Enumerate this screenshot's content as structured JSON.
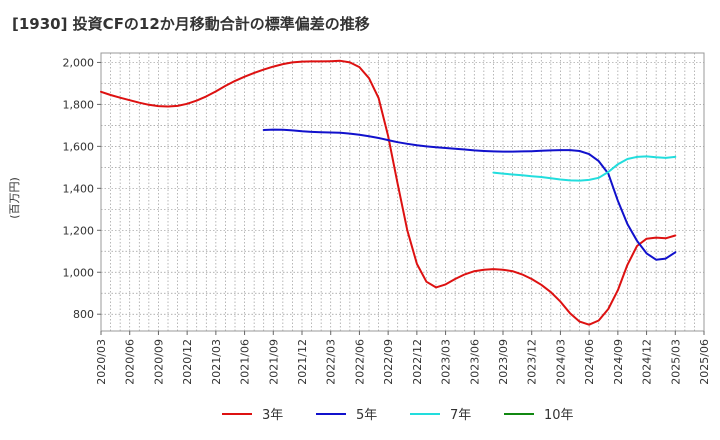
{
  "chart_data": {
    "type": "line",
    "title": "[1930]  投資CFの12か月移動合計の標準偏差の推移",
    "ylabel": "(百万円)",
    "ylim": [
      720,
      2045
    ],
    "yticks": [
      800,
      1000,
      1200,
      1400,
      1600,
      1800,
      2000
    ],
    "ytick_labels": [
      "800",
      "1,000",
      "1,200",
      "1,400",
      "1,600",
      "1,800",
      "2,000"
    ],
    "xlim": [
      "2020-03",
      "2025-06"
    ],
    "xticks": [
      "2020/03",
      "2020/06",
      "2020/09",
      "2020/12",
      "2021/03",
      "2021/06",
      "2021/09",
      "2021/12",
      "2022/03",
      "2022/06",
      "2022/09",
      "2022/12",
      "2023/03",
      "2023/06",
      "2023/09",
      "2023/12",
      "2024/03",
      "2024/06",
      "2024/09",
      "2024/12",
      "2025/03",
      "2025/06"
    ],
    "grid": true,
    "legend_position": "bottom",
    "series": [
      {
        "name": "3年",
        "color": "#dd1111",
        "x": [
          "2020-03",
          "2020-04",
          "2020-05",
          "2020-06",
          "2020-07",
          "2020-08",
          "2020-09",
          "2020-10",
          "2020-11",
          "2020-12",
          "2021-01",
          "2021-02",
          "2021-03",
          "2021-04",
          "2021-05",
          "2021-06",
          "2021-07",
          "2021-08",
          "2021-09",
          "2021-10",
          "2021-11",
          "2021-12",
          "2022-01",
          "2022-02",
          "2022-03",
          "2022-04",
          "2022-05",
          "2022-06",
          "2022-07",
          "2022-08",
          "2022-09",
          "2022-10",
          "2022-11",
          "2022-12",
          "2023-01",
          "2023-02",
          "2023-03",
          "2023-04",
          "2023-05",
          "2023-06",
          "2023-07",
          "2023-08",
          "2023-09",
          "2023-10",
          "2023-11",
          "2023-12",
          "2024-01",
          "2024-02",
          "2024-03",
          "2024-04",
          "2024-05",
          "2024-06",
          "2024-07",
          "2024-08",
          "2024-09",
          "2024-10",
          "2024-11",
          "2024-12",
          "2025-01",
          "2025-02",
          "2025-03"
        ],
        "values": [
          1860,
          1845,
          1832,
          1820,
          1808,
          1798,
          1792,
          1790,
          1793,
          1803,
          1818,
          1838,
          1862,
          1888,
          1912,
          1932,
          1950,
          1966,
          1980,
          1992,
          2000,
          2004,
          2005,
          2005,
          2006,
          2008,
          2000,
          1978,
          1925,
          1830,
          1650,
          1420,
          1200,
          1040,
          955,
          928,
          942,
          968,
          990,
          1005,
          1012,
          1015,
          1012,
          1005,
          990,
          968,
          940,
          905,
          860,
          805,
          765,
          750,
          770,
          825,
          915,
          1035,
          1125,
          1160,
          1165,
          1162,
          1175
        ]
      },
      {
        "name": "5年",
        "color": "#1111cc",
        "x": [
          "2021-08",
          "2021-09",
          "2021-10",
          "2021-11",
          "2021-12",
          "2022-01",
          "2022-02",
          "2022-03",
          "2022-04",
          "2022-05",
          "2022-06",
          "2022-07",
          "2022-08",
          "2022-09",
          "2022-10",
          "2022-11",
          "2022-12",
          "2023-01",
          "2023-02",
          "2023-03",
          "2023-04",
          "2023-05",
          "2023-06",
          "2023-07",
          "2023-08",
          "2023-09",
          "2023-10",
          "2023-11",
          "2023-12",
          "2024-01",
          "2024-02",
          "2024-03",
          "2024-04",
          "2024-05",
          "2024-06",
          "2024-07",
          "2024-08",
          "2024-09",
          "2024-10",
          "2024-11",
          "2024-12",
          "2025-01",
          "2025-02",
          "2025-03"
        ],
        "values": [
          1678,
          1680,
          1679,
          1676,
          1672,
          1669,
          1667,
          1666,
          1665,
          1661,
          1655,
          1648,
          1640,
          1630,
          1620,
          1612,
          1605,
          1600,
          1596,
          1592,
          1589,
          1585,
          1581,
          1578,
          1576,
          1575,
          1575,
          1576,
          1577,
          1579,
          1581,
          1582,
          1582,
          1578,
          1563,
          1530,
          1470,
          1340,
          1230,
          1150,
          1090,
          1060,
          1065,
          1095
        ]
      },
      {
        "name": "7年",
        "color": "#22dddd",
        "x": [
          "2023-08",
          "2023-09",
          "2023-10",
          "2023-11",
          "2023-12",
          "2024-01",
          "2024-02",
          "2024-03",
          "2024-04",
          "2024-05",
          "2024-06",
          "2024-07",
          "2024-08",
          "2024-09",
          "2024-10",
          "2024-11",
          "2024-12",
          "2025-01",
          "2025-02",
          "2025-03"
        ],
        "values": [
          1475,
          1470,
          1466,
          1462,
          1458,
          1454,
          1448,
          1442,
          1438,
          1437,
          1440,
          1450,
          1478,
          1515,
          1540,
          1550,
          1552,
          1548,
          1545,
          1550
        ]
      },
      {
        "name": "10年",
        "color": "#118811",
        "x": [],
        "values": []
      }
    ]
  }
}
